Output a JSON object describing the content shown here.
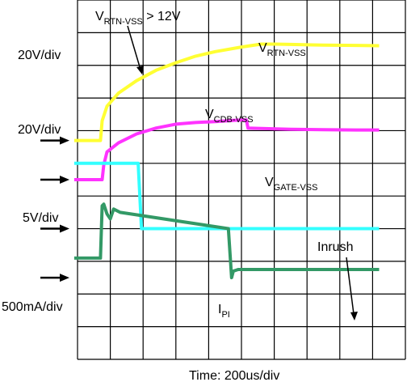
{
  "chart_data": {
    "type": "line",
    "xlabel": "Time: 200us/div",
    "grid": true,
    "divisions": {
      "x": 10,
      "y": 11
    },
    "scale_labels": [
      "20V/div",
      "20V/div",
      "5V/div",
      "500mA/div"
    ],
    "annotations": {
      "threshold": {
        "main": "V",
        "sub": "RTN-VSS",
        "rest": " > 12V"
      },
      "inrush": "Inrush"
    },
    "series": [
      {
        "name": "VRTN-VSS",
        "label": {
          "main": "V",
          "sub": "RTN-VSS"
        },
        "color": "#ffff33",
        "ground_div": 2.7,
        "points": [
          [
            -0.1,
            0
          ],
          [
            0.7,
            0
          ],
          [
            0.75,
            0.6
          ],
          [
            0.9,
            1.05
          ],
          [
            1.25,
            1.45
          ],
          [
            1.8,
            1.83
          ],
          [
            2.4,
            2.15
          ],
          [
            3.0,
            2.38
          ],
          [
            3.6,
            2.58
          ],
          [
            4.2,
            2.72
          ],
          [
            5.0,
            2.86
          ],
          [
            5.6,
            2.95
          ],
          [
            6.0,
            2.95
          ],
          [
            6.5,
            2.94
          ],
          [
            7.5,
            2.92
          ],
          [
            8.5,
            2.91
          ],
          [
            9.2,
            2.9
          ]
        ]
      },
      {
        "name": "VCDB-VSS",
        "label": {
          "main": "V",
          "sub": "CDB-VSS"
        },
        "color": "#ff33ff",
        "ground_div": 1.5,
        "points": [
          [
            -0.1,
            0
          ],
          [
            0.75,
            0
          ],
          [
            0.8,
            0.45
          ],
          [
            0.9,
            0.85
          ],
          [
            1.25,
            1.13
          ],
          [
            1.8,
            1.4
          ],
          [
            2.4,
            1.58
          ],
          [
            3.0,
            1.7
          ],
          [
            3.6,
            1.75
          ],
          [
            4.2,
            1.78
          ],
          [
            4.85,
            1.82
          ],
          [
            5.15,
            1.83
          ],
          [
            5.2,
            1.58
          ],
          [
            5.5,
            1.57
          ],
          [
            6.5,
            1.54
          ],
          [
            7.5,
            1.53
          ],
          [
            8.5,
            1.52
          ],
          [
            9.2,
            1.52
          ]
        ]
      },
      {
        "name": "VGATE-VSS",
        "label": {
          "main": "V",
          "sub": "GATE-VSS"
        },
        "color": "#33ffff",
        "ground_div": 0,
        "points": [
          [
            -0.1,
            2.0
          ],
          [
            1.85,
            2.0
          ],
          [
            1.95,
            0
          ],
          [
            9.2,
            0
          ]
        ]
      },
      {
        "name": "IPI",
        "label": {
          "main": "I",
          "sub": "PI"
        },
        "color": "#339966",
        "ground_div": -1.5,
        "points": [
          [
            -0.1,
            0.6
          ],
          [
            0.7,
            0.6
          ],
          [
            0.75,
            2.2
          ],
          [
            0.8,
            2.25
          ],
          [
            0.9,
            1.95
          ],
          [
            1.0,
            1.8
          ],
          [
            1.1,
            2.1
          ],
          [
            1.3,
            2.0
          ],
          [
            4.6,
            1.5
          ],
          [
            4.7,
            0
          ],
          [
            4.75,
            0.2
          ],
          [
            4.9,
            0.25
          ],
          [
            9.2,
            0.25
          ]
        ]
      }
    ]
  }
}
